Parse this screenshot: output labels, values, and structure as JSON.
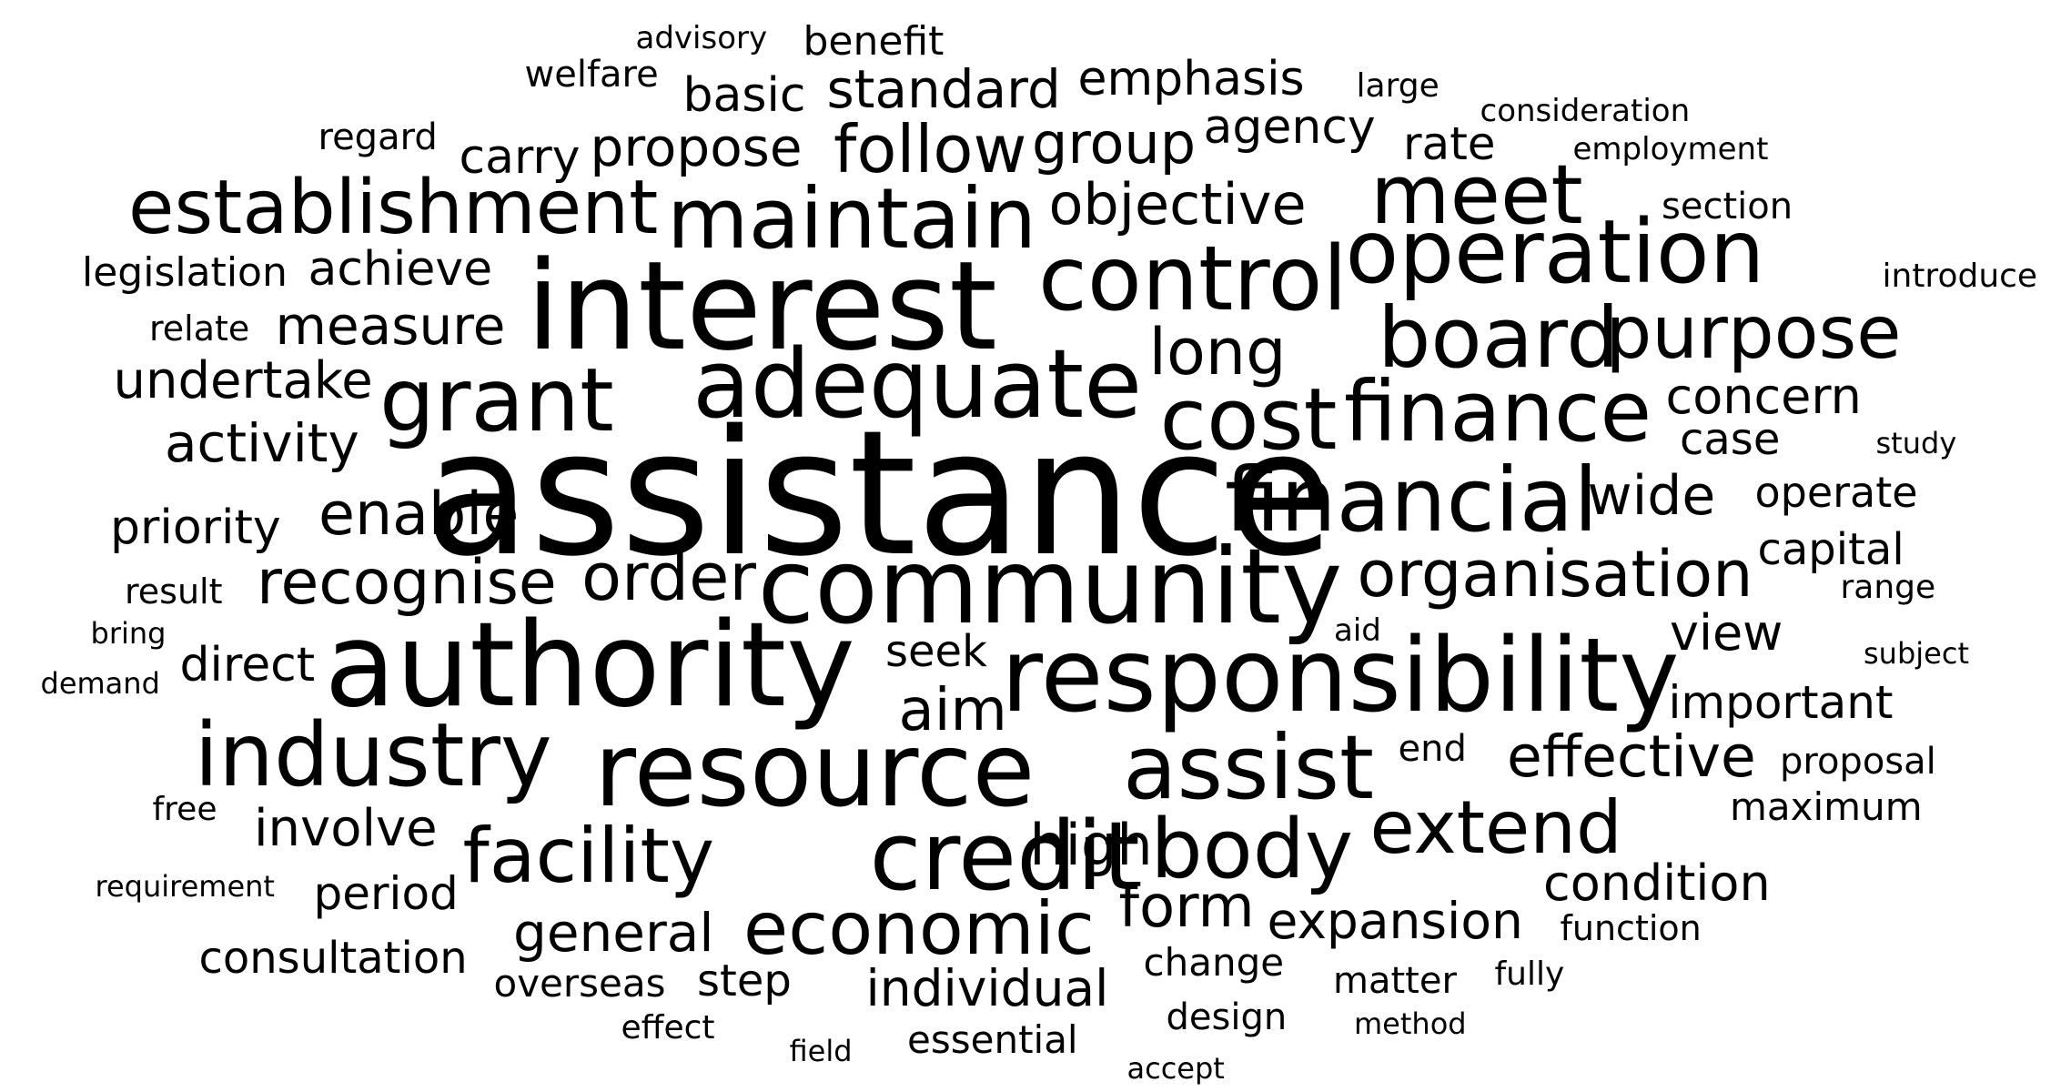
{
  "word_cloud": {
    "color": "#000000",
    "words": [
      {
        "text": "assistance"
      },
      {
        "text": "interest"
      },
      {
        "text": "authority"
      },
      {
        "text": "community"
      },
      {
        "text": "resource"
      },
      {
        "text": "responsibility"
      },
      {
        "text": "adequate"
      },
      {
        "text": "industry"
      },
      {
        "text": "credit"
      },
      {
        "text": "assist"
      },
      {
        "text": "control"
      },
      {
        "text": "financial"
      },
      {
        "text": "maintain"
      },
      {
        "text": "finance"
      },
      {
        "text": "operation"
      },
      {
        "text": "grant"
      },
      {
        "text": "establishment"
      },
      {
        "text": "meet"
      },
      {
        "text": "board"
      },
      {
        "text": "cost"
      },
      {
        "text": "body"
      },
      {
        "text": "purpose"
      },
      {
        "text": "facility"
      },
      {
        "text": "economic"
      },
      {
        "text": "extend"
      },
      {
        "text": "organisation"
      },
      {
        "text": "recognise"
      },
      {
        "text": "order"
      },
      {
        "text": "enable"
      },
      {
        "text": "effective"
      },
      {
        "text": "objective"
      },
      {
        "text": "follow"
      },
      {
        "text": "long"
      },
      {
        "text": "measure"
      },
      {
        "text": "high"
      },
      {
        "text": "aim"
      },
      {
        "text": "concern"
      },
      {
        "text": "activity"
      },
      {
        "text": "group"
      },
      {
        "text": "expansion"
      },
      {
        "text": "propose"
      },
      {
        "text": "individual"
      },
      {
        "text": "standard"
      },
      {
        "text": "general"
      },
      {
        "text": "form"
      },
      {
        "text": "emphasis"
      },
      {
        "text": "undertake"
      },
      {
        "text": "achieve"
      },
      {
        "text": "wide"
      },
      {
        "text": "condition"
      },
      {
        "text": "involve"
      },
      {
        "text": "important"
      },
      {
        "text": "agency"
      },
      {
        "text": "view"
      },
      {
        "text": "priority"
      },
      {
        "text": "consultation"
      },
      {
        "text": "rate"
      },
      {
        "text": "seek"
      },
      {
        "text": "period"
      },
      {
        "text": "direct"
      },
      {
        "text": "operate"
      },
      {
        "text": "basic"
      },
      {
        "text": "carry"
      },
      {
        "text": "case"
      },
      {
        "text": "capital"
      },
      {
        "text": "legislation"
      },
      {
        "text": "step"
      },
      {
        "text": "essential"
      },
      {
        "text": "change"
      },
      {
        "text": "overseas"
      },
      {
        "text": "matter"
      },
      {
        "text": "design"
      },
      {
        "text": "maximum"
      },
      {
        "text": "proposal"
      },
      {
        "text": "welfare"
      },
      {
        "text": "benefit"
      },
      {
        "text": "section"
      },
      {
        "text": "regard"
      },
      {
        "text": "end"
      },
      {
        "text": "effect"
      },
      {
        "text": "function"
      },
      {
        "text": "relate"
      },
      {
        "text": "result"
      },
      {
        "text": "range"
      },
      {
        "text": "large"
      },
      {
        "text": "introduce"
      },
      {
        "text": "subject"
      },
      {
        "text": "fully"
      },
      {
        "text": "free"
      },
      {
        "text": "study"
      },
      {
        "text": "advisory"
      },
      {
        "text": "consideration"
      },
      {
        "text": "employment"
      },
      {
        "text": "requirement"
      },
      {
        "text": "bring"
      },
      {
        "text": "demand"
      },
      {
        "text": "aid"
      },
      {
        "text": "method"
      },
      {
        "text": "field"
      },
      {
        "text": "accept"
      }
    ]
  }
}
